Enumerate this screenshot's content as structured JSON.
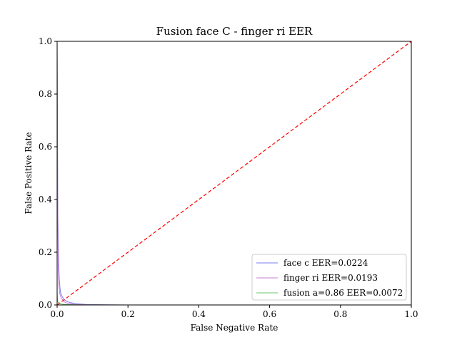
{
  "chart_data": {
    "type": "line",
    "title": "Fusion face C - finger ri EER",
    "xlabel": "False Negative Rate",
    "ylabel": "False Positive Rate",
    "xlim": [
      0,
      1
    ],
    "ylim": [
      0,
      1
    ],
    "x_ticks": [
      "0.0",
      "0.2",
      "0.4",
      "0.6",
      "0.8",
      "1.0"
    ],
    "y_ticks": [
      "0.0",
      "0.2",
      "0.4",
      "0.6",
      "0.8",
      "1.0"
    ],
    "grid": false,
    "legend_position": "lower-right",
    "series": [
      {
        "name": "face c EER=0.0224",
        "color": "#7b7bf0",
        "x": [
          0.0,
          0.002,
          0.004,
          0.006,
          0.008,
          0.01,
          0.015,
          0.02,
          0.03,
          0.04,
          0.06,
          0.08,
          0.1,
          0.15,
          0.2
        ],
        "y": [
          1.0,
          0.35,
          0.18,
          0.1,
          0.065,
          0.045,
          0.03,
          0.02,
          0.012,
          0.008,
          0.004,
          0.002,
          0.0012,
          0.0004,
          0.0
        ]
      },
      {
        "name": "finger ri EER=0.0193",
        "color": "#c77bd0",
        "x": [
          0.0,
          0.001,
          0.002,
          0.003,
          0.005,
          0.008,
          0.012,
          0.016,
          0.02,
          0.03,
          0.05,
          0.08,
          0.12,
          0.2
        ],
        "y": [
          1.0,
          0.6,
          0.3,
          0.15,
          0.07,
          0.04,
          0.025,
          0.019,
          0.012,
          0.006,
          0.002,
          0.001,
          0.0004,
          0.0
        ]
      },
      {
        "name": "fusion a=0.86 EER=0.0072",
        "color": "#6cc06c",
        "x": [
          0.0,
          0.0005,
          0.001,
          0.002,
          0.004,
          0.007,
          0.01,
          0.02,
          0.05,
          0.1,
          0.2
        ],
        "y": [
          0.05,
          0.03,
          0.02,
          0.012,
          0.009,
          0.007,
          0.004,
          0.002,
          0.0006,
          0.0002,
          0.0
        ]
      },
      {
        "name": "",
        "color": "#ff0000",
        "dashed": true,
        "x": [
          0,
          1
        ],
        "y": [
          0,
          1
        ]
      }
    ]
  }
}
